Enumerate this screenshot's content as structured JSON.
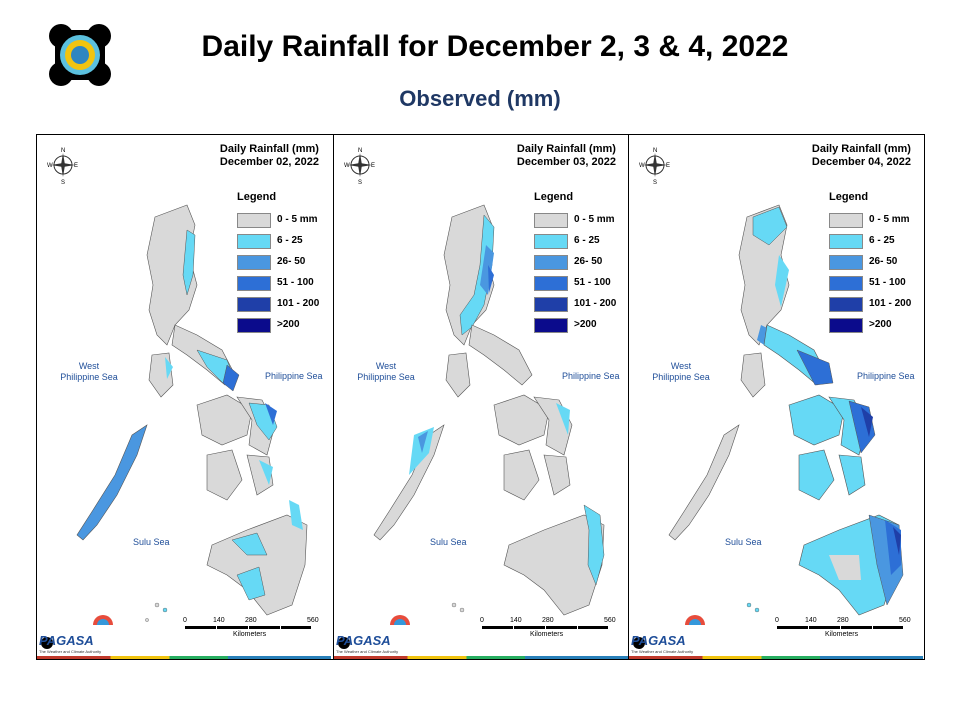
{
  "header": {
    "title": "Daily Rainfall for December 2, 3 & 4, 2022",
    "subtitle": "Observed (mm)"
  },
  "legend": {
    "title": "Legend",
    "items": [
      {
        "label": "0 - 5 mm",
        "color": "#d9d9d9"
      },
      {
        "label": "6 - 25",
        "color": "#66d9f5"
      },
      {
        "label": "26- 50",
        "color": "#4a97e0"
      },
      {
        "label": "51 - 100",
        "color": "#2d6fd6"
      },
      {
        "label": "101 - 200",
        "color": "#1f3fa8"
      },
      {
        "label": ">200",
        "color": "#0b0b8c"
      }
    ]
  },
  "seas": {
    "west": "West\nPhilippine Sea",
    "east": "Philippine Sea",
    "sulu": "Sulu Sea"
  },
  "scale": {
    "ticks": [
      "0",
      "140",
      "280",
      "560"
    ],
    "unit": "Kilometers"
  },
  "compass": {
    "n": "N",
    "s": "S",
    "e": "E",
    "w": "W"
  },
  "brand": {
    "name": "PAGASA",
    "tagline": "The Weather and Climate Authority"
  },
  "panels": [
    {
      "map_title_line1": "Daily Rainfall (mm)",
      "map_title_line2": "December 02, 2022"
    },
    {
      "map_title_line1": "Daily Rainfall (mm)",
      "map_title_line2": "December 03, 2022"
    },
    {
      "map_title_line1": "Daily Rainfall (mm)",
      "map_title_line2": "December 04, 2022"
    }
  ]
}
